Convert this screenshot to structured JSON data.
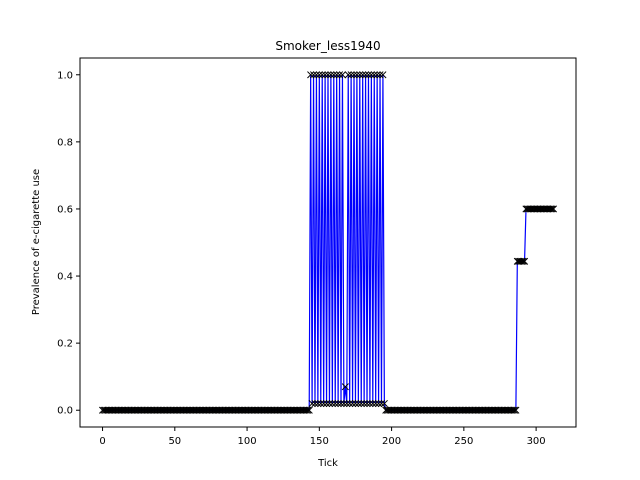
{
  "chart_data": {
    "type": "line",
    "title": "Smoker_less1940",
    "xlabel": "Tick",
    "ylabel": "Prevalence of e-cigarette use",
    "xlim": [
      -15.6,
      327.6
    ],
    "ylim": [
      -0.05,
      1.05
    ],
    "xticks": [
      0,
      50,
      100,
      150,
      200,
      250,
      300
    ],
    "yticks": [
      0.0,
      0.2,
      0.4,
      0.6,
      0.8,
      1.0
    ],
    "ytick_labels": [
      "0.0",
      "0.2",
      "0.4",
      "0.6",
      "0.8",
      "1.0"
    ],
    "grid": false,
    "line_color": "#0000ff",
    "marker_color": "#000000",
    "marker": "x",
    "series": [
      {
        "segments": [
          {
            "x_start": 0,
            "x_end": 143,
            "value": 0.0
          },
          {
            "x_start": 144,
            "x_end": 195,
            "alternating": [
              1.0,
              0.02
            ],
            "note_value": 0.07,
            "note_x": 168
          },
          {
            "x_start": 196,
            "x_end": 286,
            "value": 0.0
          },
          {
            "x_start": 287,
            "x_end": 292,
            "value": 0.444
          },
          {
            "x_start": 293,
            "x_end": 312,
            "value": 0.6
          }
        ]
      }
    ]
  }
}
